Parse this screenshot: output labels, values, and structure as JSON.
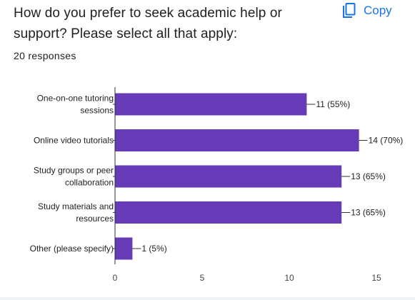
{
  "question": {
    "title": "How do you prefer to seek academic help or support? Please select all that apply:",
    "responses": "20 responses"
  },
  "toolbar": {
    "copy_label": "Copy",
    "copy_icon": "copy-icon"
  },
  "colors": {
    "bar": "#673ab7",
    "axis": "#333333",
    "text": "#202124",
    "accent": "#1a73e8"
  },
  "chart_data": {
    "type": "bar",
    "orientation": "horizontal",
    "title": "",
    "xlabel": "",
    "ylabel": "",
    "categories": [
      [
        "One-on-one tutoring",
        "sessions"
      ],
      [
        "Online video tutorials"
      ],
      [
        "Study groups or peer",
        "collaboration"
      ],
      [
        "Study materials and",
        "resources"
      ],
      [
        "Other (please specify)"
      ]
    ],
    "values": [
      11,
      14,
      13,
      13,
      1
    ],
    "data_labels": [
      "11 (55%)",
      "14 (70%)",
      "13 (65%)",
      "13 (65%)",
      "1 (5%)"
    ],
    "xlim": [
      0,
      15
    ],
    "xticks": [
      0,
      5,
      10,
      15
    ],
    "grid": false
  }
}
